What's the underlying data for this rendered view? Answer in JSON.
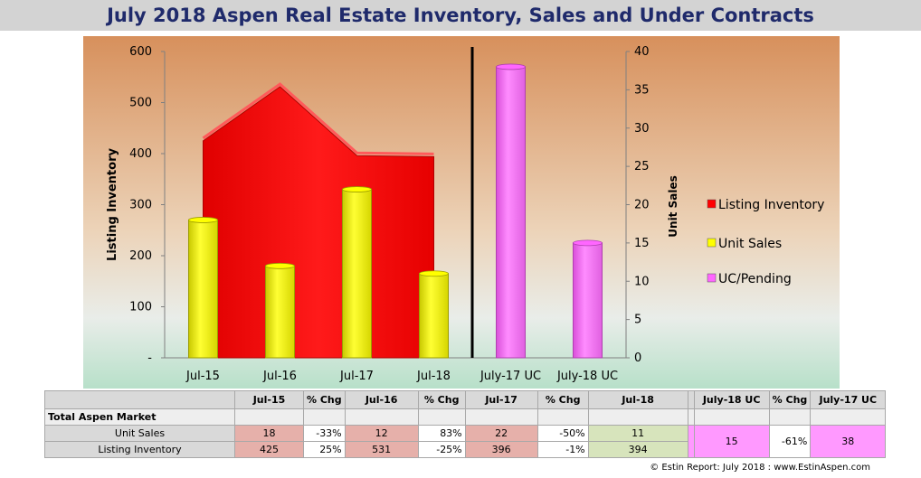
{
  "title": "July 2018 Aspen Real Estate Inventory, Sales and Under Contracts",
  "chart_data": {
    "type": "bar",
    "categories": [
      "Jul-15",
      "Jul-16",
      "Jul-17",
      "Jul-18",
      "July-17 UC",
      "July-18 UC"
    ],
    "series": [
      {
        "name": "Listing Inventory",
        "type": "area",
        "axis": "left",
        "color": "#ff0000",
        "values": [
          425,
          531,
          396,
          394,
          null,
          null
        ]
      },
      {
        "name": "Unit Sales",
        "type": "bar",
        "axis": "right",
        "color": "#ffff00",
        "values": [
          18,
          12,
          22,
          11,
          null,
          null
        ]
      },
      {
        "name": "UC/Pending",
        "type": "bar",
        "axis": "right",
        "color": "#ff66ff",
        "values": [
          null,
          null,
          null,
          null,
          38,
          15
        ]
      }
    ],
    "ylabel": "Listing Inventory",
    "y2label": "Unit Sales",
    "ylim": [
      0,
      600
    ],
    "y2lim": [
      0,
      40
    ],
    "yticks": [
      "-",
      "100",
      "200",
      "300",
      "400",
      "500",
      "600"
    ],
    "y2ticks": [
      "0",
      "5",
      "10",
      "15",
      "20",
      "25",
      "30",
      "35",
      "40"
    ],
    "legend_position": "right",
    "divider_after_category": "Jul-18",
    "grid": false
  },
  "table": {
    "headers": [
      "",
      "Jul-15",
      "% Chg",
      "Jul-16",
      "% Chg",
      "Jul-17",
      "% Chg",
      "Jul-18",
      "",
      "July-18 UC",
      "% Chg",
      "July-17 UC"
    ],
    "section_label": "Total Aspen Market",
    "rows": [
      {
        "label": "Unit Sales",
        "cells": [
          "18",
          "-33%",
          "12",
          "83%",
          "22",
          "-50%",
          "11"
        ],
        "uc": [
          "15",
          "-61%",
          "38"
        ]
      },
      {
        "label": "Listing Inventory",
        "cells": [
          "425",
          "25%",
          "531",
          "-25%",
          "396",
          "-1%",
          "394"
        ],
        "uc": [
          "",
          "",
          ""
        ]
      }
    ]
  },
  "footer": "© Estin Report: July 2018 : www.EstinAspen.com"
}
